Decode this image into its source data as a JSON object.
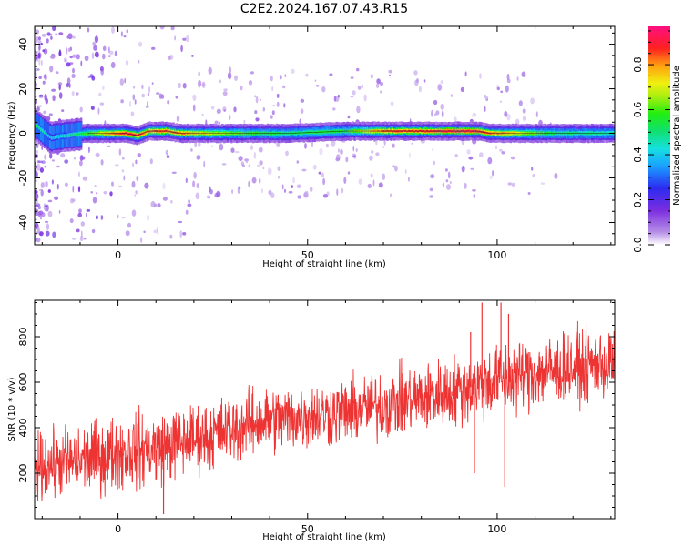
{
  "title": "C2E2.2024.167.07.43.R15",
  "chart_data": [
    {
      "type": "heatmap",
      "xlabel": "Height of straight line (km)",
      "ylabel": "Frequency (Hz)",
      "xlim": [
        -22,
        131
      ],
      "ylim": [
        -50,
        48
      ],
      "x_ticks": [
        0,
        50,
        100
      ],
      "y_ticks": [
        -40,
        -20,
        0,
        20,
        40
      ],
      "grid": false,
      "colormap": "rainbow (purple-blue-cyan-green-yellow-red-magenta), low values white",
      "colorbar": {
        "label": "Normalized spectral amplitude",
        "range": [
          0,
          0.97
        ],
        "ticks": [
          0.0,
          0.2,
          0.4,
          0.6,
          0.8
        ]
      },
      "ridge_frequency_profile": [
        {
          "x": -22,
          "y": 4
        },
        {
          "x": -18,
          "y": -2
        },
        {
          "x": -14,
          "y": -1
        },
        {
          "x": -8,
          "y": 0
        },
        {
          "x": 2,
          "y": 0
        },
        {
          "x": 5,
          "y": -1
        },
        {
          "x": 8,
          "y": 1
        },
        {
          "x": 13,
          "y": 1
        },
        {
          "x": 16,
          "y": 0
        },
        {
          "x": 30,
          "y": 0
        },
        {
          "x": 45,
          "y": 0
        },
        {
          "x": 60,
          "y": 1
        },
        {
          "x": 70,
          "y": 1
        },
        {
          "x": 80,
          "y": 1
        },
        {
          "x": 95,
          "y": 1
        },
        {
          "x": 98,
          "y": 0
        },
        {
          "x": 110,
          "y": 0
        },
        {
          "x": 131,
          "y": 0
        }
      ],
      "ridge_amplitude_profile": [
        {
          "x": -22,
          "y": 0.55
        },
        {
          "x": -18,
          "y": 0.4
        },
        {
          "x": -10,
          "y": 0.55
        },
        {
          "x": -2,
          "y": 0.85
        },
        {
          "x": 3,
          "y": 0.95
        },
        {
          "x": 8,
          "y": 0.85
        },
        {
          "x": 12,
          "y": 0.9
        },
        {
          "x": 20,
          "y": 0.8
        },
        {
          "x": 30,
          "y": 0.65
        },
        {
          "x": 45,
          "y": 0.55
        },
        {
          "x": 60,
          "y": 0.6
        },
        {
          "x": 71,
          "y": 0.9
        },
        {
          "x": 80,
          "y": 0.9
        },
        {
          "x": 88,
          "y": 0.97
        },
        {
          "x": 94,
          "y": 0.97
        },
        {
          "x": 99,
          "y": 0.85
        },
        {
          "x": 103,
          "y": 0.8
        },
        {
          "x": 115,
          "y": 0.55
        },
        {
          "x": 131,
          "y": 0.5
        }
      ]
    },
    {
      "type": "line",
      "xlabel": "Height of straight line (km)",
      "ylabel": "SNR (10 * v/v)",
      "xlim": [
        -22,
        131
      ],
      "ylim": [
        0,
        960
      ],
      "x_ticks": [
        0,
        50,
        100
      ],
      "y_ticks": [
        200,
        400,
        600,
        800
      ],
      "grid": false,
      "series": [
        {
          "color": "#ee3333",
          "envelope": [
            {
              "x": -22,
              "low": 30,
              "high": 430
            },
            {
              "x": -10,
              "low": 40,
              "high": 470
            },
            {
              "x": 0,
              "low": 60,
              "high": 520
            },
            {
              "x": 10,
              "low": 80,
              "high": 540
            },
            {
              "x": 20,
              "low": 140,
              "high": 560
            },
            {
              "x": 30,
              "low": 190,
              "high": 600
            },
            {
              "x": 40,
              "low": 230,
              "high": 640
            },
            {
              "x": 50,
              "low": 250,
              "high": 650
            },
            {
              "x": 60,
              "low": 270,
              "high": 670
            },
            {
              "x": 70,
              "low": 290,
              "high": 710
            },
            {
              "x": 80,
              "low": 320,
              "high": 740
            },
            {
              "x": 90,
              "low": 350,
              "high": 780
            },
            {
              "x": 100,
              "low": 390,
              "high": 830
            },
            {
              "x": 110,
              "low": 420,
              "high": 860
            },
            {
              "x": 120,
              "low": 450,
              "high": 880
            },
            {
              "x": 131,
              "low": 470,
              "high": 900
            }
          ],
          "spikes": [
            {
              "x": 12,
              "y": 20
            },
            {
              "x": 88,
              "y": 540
            },
            {
              "x": 93,
              "y": 820
            },
            {
              "x": 94,
              "y": 200
            },
            {
              "x": 96,
              "y": 950
            },
            {
              "x": 101,
              "y": 950
            },
            {
              "x": 102,
              "y": 140
            },
            {
              "x": 103,
              "y": 900
            }
          ]
        }
      ]
    }
  ]
}
